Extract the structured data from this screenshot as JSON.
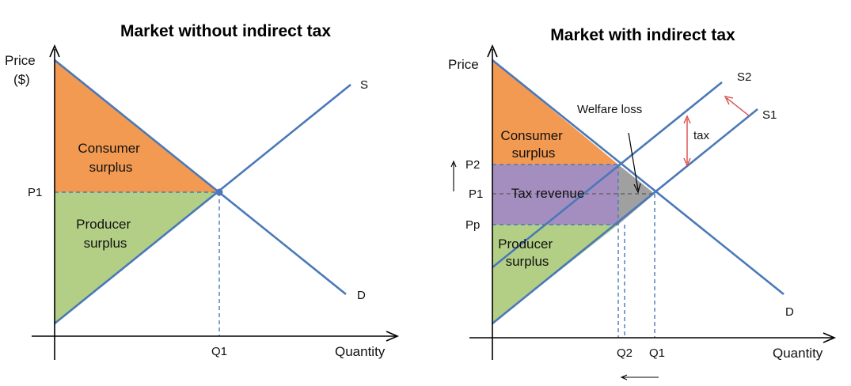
{
  "chart_data": [
    {
      "type": "supply-demand diagram",
      "title": "Market without indirect tax",
      "ylabel": "Price",
      "ylabel_unit": "($)",
      "xlabel": "Quantity",
      "x_ticks": [
        "Q1"
      ],
      "y_ticks": [
        "P1"
      ],
      "curves": [
        {
          "name": "S",
          "color": "#4a78b8"
        },
        {
          "name": "D",
          "color": "#4a78b8"
        }
      ],
      "regions": [
        {
          "name": "Consumer surplus",
          "color": "#f39a52"
        },
        {
          "name": "Producer surplus",
          "color": "#b3cf86"
        }
      ],
      "equilibrium": {
        "x": "Q1",
        "y": "P1"
      }
    },
    {
      "type": "supply-demand diagram",
      "title": "Market with indirect tax",
      "ylabel": "Price",
      "xlabel": "Quantity",
      "x_ticks": [
        "Q2",
        "Q1"
      ],
      "y_ticks": [
        "P2",
        "P1",
        "Pp"
      ],
      "curves": [
        {
          "name": "S2",
          "color": "#4a78b8"
        },
        {
          "name": "S1",
          "color": "#4a78b8"
        },
        {
          "name": "D",
          "color": "#4a78b8"
        }
      ],
      "regions": [
        {
          "name": "Consumer surplus",
          "color": "#f39a52"
        },
        {
          "name": "Tax revenue",
          "color": "#a48ec0"
        },
        {
          "name": "Producer surplus",
          "color": "#b3cf86"
        },
        {
          "name": "Welfare loss",
          "color": "#a0a0a0"
        }
      ],
      "annotations": [
        "Welfare loss",
        "tax"
      ]
    }
  ]
}
